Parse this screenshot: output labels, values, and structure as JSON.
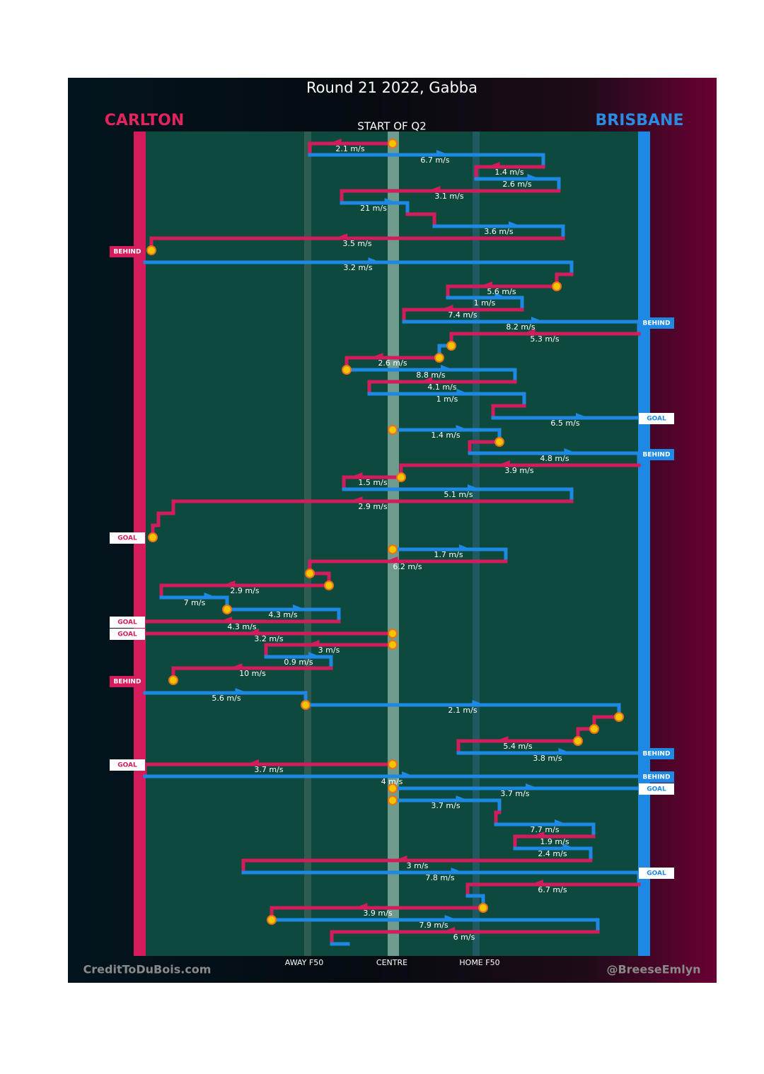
{
  "title": "Round 21 2022, Gabba",
  "teams": {
    "left": "CARLTON",
    "right": "BRISBANE"
  },
  "start_label": "START OF Q2",
  "zones": [
    "AWAY F50",
    "CENTRE",
    "HOME F50"
  ],
  "credits": {
    "left": "CreditToDuBois.com",
    "right": "@BreeseEmlyn"
  },
  "speeds": [
    "2.1 m/s",
    "6.7 m/s",
    "1.4 m/s",
    "2.6 m/s",
    "3.1 m/s",
    "21 m/s",
    "3.6 m/s",
    "3.5 m/s",
    "3.2 m/s",
    "5.6 m/s",
    "1 m/s",
    "7.4 m/s",
    "8.2 m/s",
    "5.3 m/s",
    "2.6 m/s",
    "8.8 m/s",
    "4.1 m/s",
    "1 m/s",
    "6.5 m/s",
    "1.4 m/s",
    "4.8 m/s",
    "3.9 m/s",
    "1.5 m/s",
    "5.1 m/s",
    "2.9 m/s",
    "1.7 m/s",
    "6.2 m/s",
    "2.9 m/s",
    "7 m/s",
    "4.3 m/s",
    "4.3 m/s",
    "3.2 m/s",
    "3 m/s",
    "0.9 m/s",
    "10 m/s",
    "5.6 m/s",
    "2.1 m/s",
    "5.4 m/s",
    "3.8 m/s",
    "3.7 m/s",
    "4 m/s",
    "3.7 m/s",
    "3.7 m/s",
    "7.7 m/s",
    "1.9 m/s",
    "2.4 m/s",
    "3 m/s",
    "7.8 m/s",
    "6.7 m/s",
    "3.9 m/s",
    "7.9 m/s",
    "6 m/s"
  ],
  "outcomes": [
    "BEHIND",
    "BEHIND",
    "GOAL",
    "BEHIND",
    "GOAL",
    "GOAL",
    "GOAL",
    "BEHIND",
    "BEHIND",
    "GOAL",
    "BEHIND",
    "GOAL",
    "GOAL"
  ]
}
